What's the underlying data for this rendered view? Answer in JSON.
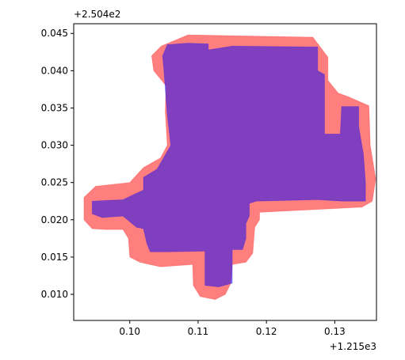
{
  "chart_data": {
    "type": "area",
    "title": "",
    "xlabel": "",
    "ylabel": "",
    "x_offset_label": "+1.215e3",
    "y_offset_label": "+2.504e2",
    "xlim": [
      0.0918,
      0.1361
    ],
    "ylim": [
      0.0065,
      0.0463
    ],
    "x_ticks": [
      0.1,
      0.11,
      0.12,
      0.13
    ],
    "x_tick_labels": [
      "0.10",
      "0.11",
      "0.12",
      "0.13"
    ],
    "y_ticks": [
      0.01,
      0.015,
      0.02,
      0.025,
      0.03,
      0.035,
      0.04,
      0.045
    ],
    "y_tick_labels": [
      "0.010",
      "0.015",
      "0.020",
      "0.025",
      "0.030",
      "0.035",
      "0.040",
      "0.045"
    ],
    "grid": false,
    "colors": {
      "buffer": "#ff0000",
      "core": "#0000ff",
      "axes": "#000000"
    },
    "series": [
      {
        "role": "buffer",
        "fill": "#ff0000",
        "opacity": 0.5,
        "polygon": [
          [
            0.1046,
            0.0433
          ],
          [
            0.1085,
            0.0448
          ],
          [
            0.1268,
            0.0445
          ],
          [
            0.129,
            0.0418
          ],
          [
            0.129,
            0.0387
          ],
          [
            0.1305,
            0.037
          ],
          [
            0.132,
            0.0365
          ],
          [
            0.135,
            0.0353
          ],
          [
            0.1352,
            0.03
          ],
          [
            0.136,
            0.0255
          ],
          [
            0.1355,
            0.0225
          ],
          [
            0.134,
            0.0217
          ],
          [
            0.119,
            0.021
          ],
          [
            0.119,
            0.02
          ],
          [
            0.1183,
            0.019
          ],
          [
            0.118,
            0.0155
          ],
          [
            0.117,
            0.0143
          ],
          [
            0.115,
            0.014
          ],
          [
            0.1148,
            0.0115
          ],
          [
            0.114,
            0.01
          ],
          [
            0.1125,
            0.0093
          ],
          [
            0.1103,
            0.0097
          ],
          [
            0.1093,
            0.0112
          ],
          [
            0.1092,
            0.014
          ],
          [
            0.1045,
            0.0137
          ],
          [
            0.1015,
            0.0143
          ],
          [
            0.1,
            0.015
          ],
          [
            0.0998,
            0.0175
          ],
          [
            0.099,
            0.0187
          ],
          [
            0.0965,
            0.0187
          ],
          [
            0.0945,
            0.0188
          ],
          [
            0.0933,
            0.02
          ],
          [
            0.0933,
            0.023
          ],
          [
            0.095,
            0.0245
          ],
          [
            0.1,
            0.025
          ],
          [
            0.102,
            0.027
          ],
          [
            0.1045,
            0.0283
          ],
          [
            0.1055,
            0.03
          ],
          [
            0.1052,
            0.0345
          ],
          [
            0.1053,
            0.038
          ],
          [
            0.1035,
            0.04
          ],
          [
            0.1032,
            0.042
          ]
        ]
      },
      {
        "role": "core",
        "fill": "#0000ff",
        "opacity": 0.5,
        "polygon": [
          [
            0.1055,
            0.0435
          ],
          [
            0.1085,
            0.0437
          ],
          [
            0.1115,
            0.0436
          ],
          [
            0.1115,
            0.0428
          ],
          [
            0.115,
            0.0433
          ],
          [
            0.126,
            0.0432
          ],
          [
            0.1275,
            0.0432
          ],
          [
            0.1275,
            0.04
          ],
          [
            0.1285,
            0.0395
          ],
          [
            0.1285,
            0.0315
          ],
          [
            0.1308,
            0.0315
          ],
          [
            0.131,
            0.0352
          ],
          [
            0.1335,
            0.0352
          ],
          [
            0.1335,
            0.0325
          ],
          [
            0.1342,
            0.0288
          ],
          [
            0.1345,
            0.025
          ],
          [
            0.1345,
            0.0225
          ],
          [
            0.131,
            0.0225
          ],
          [
            0.1275,
            0.0227
          ],
          [
            0.1185,
            0.0225
          ],
          [
            0.1175,
            0.0222
          ],
          [
            0.1175,
            0.0205
          ],
          [
            0.117,
            0.0195
          ],
          [
            0.117,
            0.0175
          ],
          [
            0.1165,
            0.016
          ],
          [
            0.115,
            0.016
          ],
          [
            0.115,
            0.0115
          ],
          [
            0.113,
            0.011
          ],
          [
            0.111,
            0.0112
          ],
          [
            0.111,
            0.0158
          ],
          [
            0.1055,
            0.0157
          ],
          [
            0.103,
            0.0157
          ],
          [
            0.1025,
            0.0168
          ],
          [
            0.102,
            0.0188
          ],
          [
            0.101,
            0.019
          ],
          [
            0.099,
            0.0205
          ],
          [
            0.096,
            0.0203
          ],
          [
            0.0945,
            0.0208
          ],
          [
            0.0945,
            0.0225
          ],
          [
            0.099,
            0.0227
          ],
          [
            0.102,
            0.024
          ],
          [
            0.102,
            0.0257
          ],
          [
            0.104,
            0.0268
          ],
          [
            0.106,
            0.03
          ],
          [
            0.1055,
            0.034
          ],
          [
            0.1052,
            0.0375
          ],
          [
            0.105,
            0.04
          ],
          [
            0.1048,
            0.042
          ]
        ]
      }
    ]
  }
}
